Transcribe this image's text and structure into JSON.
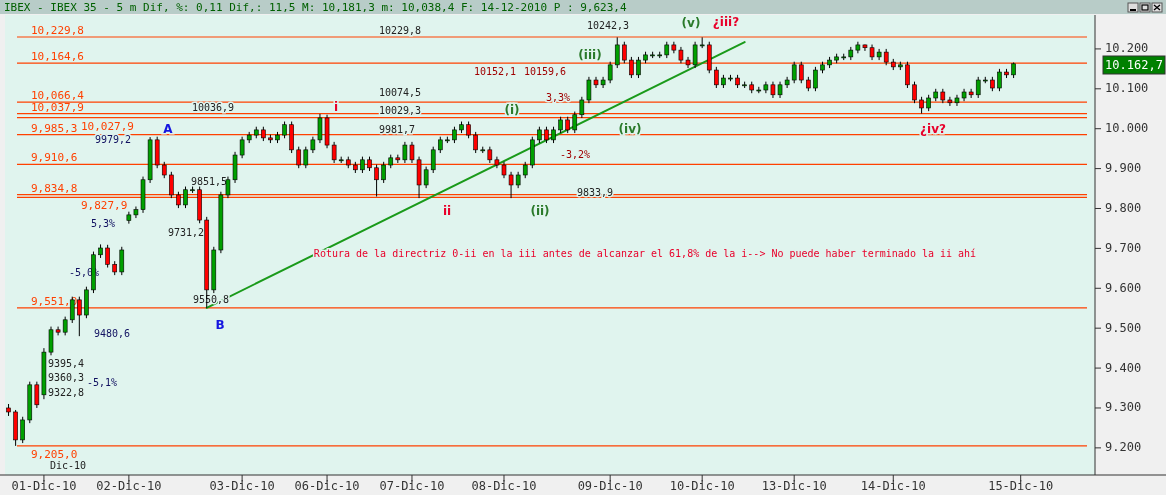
{
  "chart_data": {
    "type": "candlestick",
    "title": "IBEX - IBEX 35 - 5 m Dif, %: 0,11 Dif,: 11,5 M: 10,181,3 m: 10,038,4 F: 14-12-2010 P : 9,623,4",
    "categories": [
      null,
      null,
      null,
      null,
      null,
      "01-Dic-10",
      null,
      null,
      null,
      null,
      null,
      null,
      null,
      null,
      null,
      null,
      null,
      "02-Dic-10",
      null,
      null,
      null,
      null,
      null,
      null,
      null,
      null,
      null,
      null,
      null,
      null,
      null,
      null,
      null,
      "03-Dic-10",
      null,
      null,
      null,
      null,
      null,
      null,
      null,
      null,
      null,
      null,
      null,
      "06-Dic-10",
      null,
      null,
      null,
      null,
      null,
      null,
      null,
      null,
      null,
      null,
      null,
      "07-Dic-10",
      null,
      null,
      null,
      null,
      null,
      null,
      null,
      null,
      null,
      null,
      null,
      null,
      "08-Dic-10",
      null,
      null,
      null,
      null,
      null,
      null,
      null,
      null,
      null,
      null,
      null,
      null,
      null,
      null,
      "09-Dic-10",
      null,
      null,
      null,
      null,
      null,
      null,
      null,
      null,
      null,
      null,
      null,
      null,
      "10-Dic-10",
      null,
      null,
      null,
      null,
      null,
      null,
      null,
      null,
      null,
      null,
      null,
      null,
      "13-Dic-10",
      null,
      null,
      null,
      null,
      null,
      null,
      null,
      null,
      null,
      null,
      null,
      null,
      null,
      "14-Dic-10",
      null,
      null,
      null,
      null,
      null,
      null,
      null,
      null,
      null,
      null,
      null,
      null,
      null,
      null,
      null,
      null,
      null,
      "15-Dic-10",
      null,
      null,
      null,
      null,
      null,
      null,
      null,
      null,
      null,
      null
    ],
    "ohlc": [
      [
        9300,
        9310,
        9280,
        9290
      ],
      [
        9290,
        9295,
        9205,
        9220
      ],
      [
        9220,
        9278,
        9212,
        9270
      ],
      [
        9270,
        9366,
        9262,
        9358
      ],
      [
        9358,
        9366,
        9300,
        9308
      ],
      [
        9333,
        9450,
        9322,
        9440
      ],
      [
        9440,
        9504,
        9432,
        9496
      ],
      [
        9496,
        9504,
        9482,
        9490
      ],
      [
        9490,
        9529,
        9482,
        9521
      ],
      [
        9521,
        9579,
        9513,
        9571
      ],
      [
        9571,
        9579,
        9480,
        9533
      ],
      [
        9533,
        9604,
        9525,
        9596
      ],
      [
        9596,
        9692,
        9588,
        9684
      ],
      [
        9684,
        9710,
        9676,
        9701
      ],
      [
        9701,
        9709,
        9652,
        9660
      ],
      [
        9660,
        9668,
        9633,
        9641
      ],
      [
        9641,
        9704,
        9633,
        9696
      ],
      [
        9770,
        9792,
        9762,
        9784
      ],
      [
        9784,
        9805,
        9776,
        9797
      ],
      [
        9797,
        9880,
        9789,
        9872
      ],
      [
        9872,
        9979,
        9864,
        9972
      ],
      [
        9972,
        9980,
        9901,
        9909
      ],
      [
        9909,
        9917,
        9876,
        9884
      ],
      [
        9884,
        9892,
        9826,
        9834
      ],
      [
        9834,
        9842,
        9801,
        9809
      ],
      [
        9809,
        9855,
        9801,
        9847
      ],
      [
        9847,
        9855,
        9839,
        9847
      ],
      [
        9847,
        9855,
        9763,
        9771
      ],
      [
        9771,
        9779,
        9551,
        9596
      ],
      [
        9596,
        9704,
        9588,
        9696
      ],
      [
        9696,
        9842,
        9688,
        9834
      ],
      [
        9834,
        9880,
        9826,
        9872
      ],
      [
        9872,
        9942,
        9864,
        9934
      ],
      [
        9934,
        9980,
        9926,
        9972
      ],
      [
        9972,
        9992,
        9964,
        9984
      ],
      [
        9984,
        10005,
        9976,
        9997
      ],
      [
        9997,
        10005,
        9969,
        9977
      ],
      [
        9977,
        9985,
        9964,
        9972
      ],
      [
        9972,
        9992,
        9964,
        9984
      ],
      [
        9984,
        10018,
        9976,
        10010
      ],
      [
        10010,
        10018,
        9939,
        9947
      ],
      [
        9947,
        9955,
        9901,
        9909
      ],
      [
        9909,
        9955,
        9901,
        9947
      ],
      [
        9947,
        9980,
        9939,
        9972
      ],
      [
        9972,
        10037,
        9964,
        10027
      ],
      [
        10027,
        10035,
        9951,
        9959
      ],
      [
        9959,
        9967,
        9914,
        9922
      ],
      [
        9922,
        9930,
        9914,
        9922
      ],
      [
        9922,
        9930,
        9901,
        9909
      ],
      [
        9909,
        9917,
        9889,
        9897
      ],
      [
        9897,
        9930,
        9889,
        9922
      ],
      [
        9922,
        9930,
        9894,
        9902
      ],
      [
        9902,
        9910,
        9830,
        9872
      ],
      [
        9872,
        9917,
        9864,
        9909
      ],
      [
        9909,
        9935,
        9901,
        9927
      ],
      [
        9927,
        9935,
        9914,
        9922
      ],
      [
        9922,
        9967,
        9914,
        9959
      ],
      [
        9959,
        9967,
        9914,
        9922
      ],
      [
        9922,
        9930,
        9826,
        9859
      ],
      [
        9859,
        9905,
        9851,
        9897
      ],
      [
        9897,
        9955,
        9889,
        9947
      ],
      [
        9947,
        9980,
        9939,
        9972
      ],
      [
        9972,
        9980,
        9964,
        9972
      ],
      [
        9972,
        10005,
        9964,
        9997
      ],
      [
        9997,
        10018,
        9989,
        10010
      ],
      [
        10010,
        10018,
        9976,
        9984
      ],
      [
        9984,
        9992,
        9939,
        9947
      ],
      [
        9947,
        9955,
        9939,
        9947
      ],
      [
        9947,
        9955,
        9914,
        9922
      ],
      [
        9922,
        9930,
        9901,
        9909
      ],
      [
        9909,
        9917,
        9876,
        9884
      ],
      [
        9884,
        9892,
        9826,
        9859
      ],
      [
        9859,
        9892,
        9851,
        9884
      ],
      [
        9884,
        9917,
        9876,
        9909
      ],
      [
        9909,
        9980,
        9901,
        9972
      ],
      [
        9972,
        10005,
        9964,
        9997
      ],
      [
        9997,
        10005,
        9964,
        9972
      ],
      [
        9972,
        10005,
        9964,
        9997
      ],
      [
        9997,
        10030,
        9989,
        10022
      ],
      [
        10022,
        10030,
        9989,
        9997
      ],
      [
        9997,
        10043,
        9989,
        10035
      ],
      [
        10035,
        10080,
        10027,
        10072
      ],
      [
        10072,
        10130,
        10064,
        10122
      ],
      [
        10122,
        10130,
        10102,
        10110
      ],
      [
        10110,
        10130,
        10102,
        10122
      ],
      [
        10122,
        10168,
        10114,
        10160
      ],
      [
        10160,
        10229,
        10152,
        10210
      ],
      [
        10210,
        10218,
        10164,
        10172
      ],
      [
        10172,
        10180,
        10127,
        10135
      ],
      [
        10135,
        10180,
        10127,
        10172
      ],
      [
        10172,
        10193,
        10164,
        10185
      ],
      [
        10185,
        10193,
        10177,
        10185
      ],
      [
        10185,
        10193,
        10177,
        10185
      ],
      [
        10185,
        10218,
        10177,
        10210
      ],
      [
        10210,
        10218,
        10189,
        10197
      ],
      [
        10197,
        10205,
        10164,
        10172
      ],
      [
        10172,
        10180,
        10152,
        10160
      ],
      [
        10160,
        10218,
        10152,
        10210
      ],
      [
        10210,
        10229,
        10202,
        10210
      ],
      [
        10210,
        10218,
        10139,
        10147
      ],
      [
        10147,
        10155,
        10102,
        10110
      ],
      [
        10110,
        10135,
        10102,
        10127
      ],
      [
        10127,
        10135,
        10119,
        10127
      ],
      [
        10127,
        10135,
        10102,
        10110
      ],
      [
        10110,
        10118,
        10102,
        10110
      ],
      [
        10110,
        10118,
        10089,
        10097
      ],
      [
        10097,
        10105,
        10089,
        10097
      ],
      [
        10097,
        10118,
        10089,
        10110
      ],
      [
        10110,
        10118,
        10077,
        10085
      ],
      [
        10085,
        10118,
        10077,
        10110
      ],
      [
        10110,
        10130,
        10102,
        10122
      ],
      [
        10122,
        10168,
        10114,
        10160
      ],
      [
        10160,
        10168,
        10114,
        10122
      ],
      [
        10122,
        10130,
        10094,
        10102
      ],
      [
        10102,
        10155,
        10094,
        10147
      ],
      [
        10147,
        10168,
        10139,
        10160
      ],
      [
        10160,
        10180,
        10152,
        10172
      ],
      [
        10172,
        10188,
        10164,
        10180
      ],
      [
        10180,
        10188,
        10172,
        10180
      ],
      [
        10180,
        10205,
        10172,
        10197
      ],
      [
        10197,
        10218,
        10189,
        10210
      ],
      [
        10210,
        10211,
        10195,
        10203
      ],
      [
        10203,
        10211,
        10172,
        10180
      ],
      [
        10180,
        10200,
        10172,
        10192
      ],
      [
        10192,
        10200,
        10159,
        10167
      ],
      [
        10167,
        10175,
        10147,
        10155
      ],
      [
        10155,
        10168,
        10147,
        10160
      ],
      [
        10160,
        10168,
        10102,
        10110
      ],
      [
        10110,
        10118,
        10064,
        10072
      ],
      [
        10072,
        10080,
        10038,
        10052
      ],
      [
        10052,
        10085,
        10044,
        10077
      ],
      [
        10077,
        10100,
        10069,
        10092
      ],
      [
        10092,
        10100,
        10064,
        10072
      ],
      [
        10072,
        10080,
        10057,
        10065
      ],
      [
        10065,
        10085,
        10057,
        10077
      ],
      [
        10077,
        10100,
        10069,
        10092
      ],
      [
        10092,
        10100,
        10077,
        10085
      ],
      [
        10085,
        10130,
        10077,
        10122
      ],
      [
        10122,
        10130,
        10114,
        10122
      ],
      [
        10122,
        10130,
        10094,
        10102
      ],
      [
        10102,
        10150,
        10094,
        10142
      ],
      [
        10142,
        10150,
        10127,
        10135
      ],
      [
        10135,
        10166,
        10127,
        10162.7
      ],
      null,
      null,
      null,
      null,
      null,
      null,
      null,
      null,
      null,
      null,
      null
    ],
    "ylim": [
      9132,
      10285
    ],
    "yticks": [
      {
        "value": 9200,
        "label": "9.200"
      },
      {
        "value": 9300,
        "label": "9.300"
      },
      {
        "value": 9400,
        "label": "9.400"
      },
      {
        "value": 9500,
        "label": "9.500"
      },
      {
        "value": 9600,
        "label": "9.600"
      },
      {
        "value": 9700,
        "label": "9.700"
      },
      {
        "value": 9800,
        "label": "9.800"
      },
      {
        "value": 9900,
        "label": "9.900"
      },
      {
        "value": 10000,
        "label": "10.000"
      },
      {
        "value": 10100,
        "label": "10.100"
      },
      {
        "value": 10200,
        "label": "10.200"
      }
    ],
    "series": [
      {
        "type": "line",
        "color": "#1a9a1a",
        "values": [
          null,
          null,
          null,
          null,
          null,
          null,
          null,
          null,
          null,
          null,
          null,
          null,
          null,
          null,
          null,
          null,
          null,
          null,
          null,
          null,
          null,
          null,
          null,
          null,
          null,
          null,
          null,
          null,
          9551,
          null,
          null,
          null,
          null,
          null,
          null,
          null,
          null,
          null,
          null,
          null,
          null,
          null,
          null,
          null,
          null,
          null,
          null,
          null,
          null,
          null,
          null,
          null,
          null,
          null,
          null,
          null,
          null,
          null,
          null,
          null,
          null,
          null,
          null,
          null,
          null,
          null,
          null,
          null,
          null,
          null,
          null,
          null,
          null,
          null,
          null,
          null,
          null,
          null,
          null,
          null,
          null,
          null,
          null,
          null,
          null,
          null,
          null,
          null,
          null,
          null,
          null,
          null,
          null,
          null,
          null,
          null,
          null,
          null,
          null,
          null,
          null,
          null,
          null,
          null,
          10217,
          null,
          null,
          null,
          null,
          null,
          null,
          null,
          null,
          null,
          null,
          null,
          null,
          null,
          null,
          null,
          null,
          null,
          null,
          null,
          null,
          null,
          null,
          null,
          null,
          null,
          null,
          null,
          null,
          null,
          null,
          null,
          null,
          null,
          null,
          null,
          null,
          null,
          null,
          null,
          null,
          null,
          null,
          null,
          null,
          null,
          null,
          null,
          null,
          null
        ]
      }
    ],
    "ref_lines": [
      {
        "axis": "y",
        "value": 10229.8,
        "label": "10,229,8",
        "color": "#ff4000"
      },
      {
        "axis": "y",
        "value": 10164.6,
        "label": "10,164,6",
        "color": "#ff4000"
      },
      {
        "axis": "y",
        "value": 10066.4,
        "label": "10,066,4",
        "color": "#ff4000"
      },
      {
        "axis": "y",
        "value": 10037.9,
        "label": "10,037,9",
        "color": "#ff4000"
      },
      {
        "axis": "y",
        "value": 10027.9,
        "label": "10,027,9",
        "color": "#ff4000"
      },
      {
        "axis": "y",
        "value": 9985.3,
        "label": "9,985,3",
        "color": "#ff4000"
      },
      {
        "axis": "y",
        "value": 9910.6,
        "label": "9,910,6",
        "color": "#ff4000"
      },
      {
        "axis": "y",
        "value": 9834.8,
        "label": "9,834,8",
        "color": "#ff4000"
      },
      {
        "axis": "y",
        "value": 9827.9,
        "label": "9,827,9",
        "color": "#ff4000"
      },
      {
        "axis": "y",
        "value": 9551,
        "label": "9,551,0",
        "color": "#ff4000"
      },
      {
        "axis": "y",
        "value": 9205,
        "label": "9,205,0",
        "color": "#ff4000"
      }
    ],
    "annotations": [
      "A",
      "B",
      "i",
      "ii",
      "(i)",
      "(ii)",
      "(iii)",
      "(iv)",
      "(v)",
      "¿iii?",
      "¿iv?",
      "10036,9",
      "9550,8",
      "9851,5",
      "9731,2",
      "10229,8",
      "10074,5",
      "10029,3",
      "9981,7",
      "10242,3",
      "10152,1",
      "10159,6",
      "9979,2",
      "9480,6",
      "5,3%",
      "-5,0%",
      "9395,4",
      "9360,3",
      "9322,8",
      "-5,1%",
      "3,3%",
      "-3,2%",
      "9833,9",
      "10.162,7",
      "Rotura de la directriz 0-ii en la iii antes de alcanzar el 61,8% de la i--> No puede haber terminado la ii ahí",
      "Dic-10"
    ]
  }
}
